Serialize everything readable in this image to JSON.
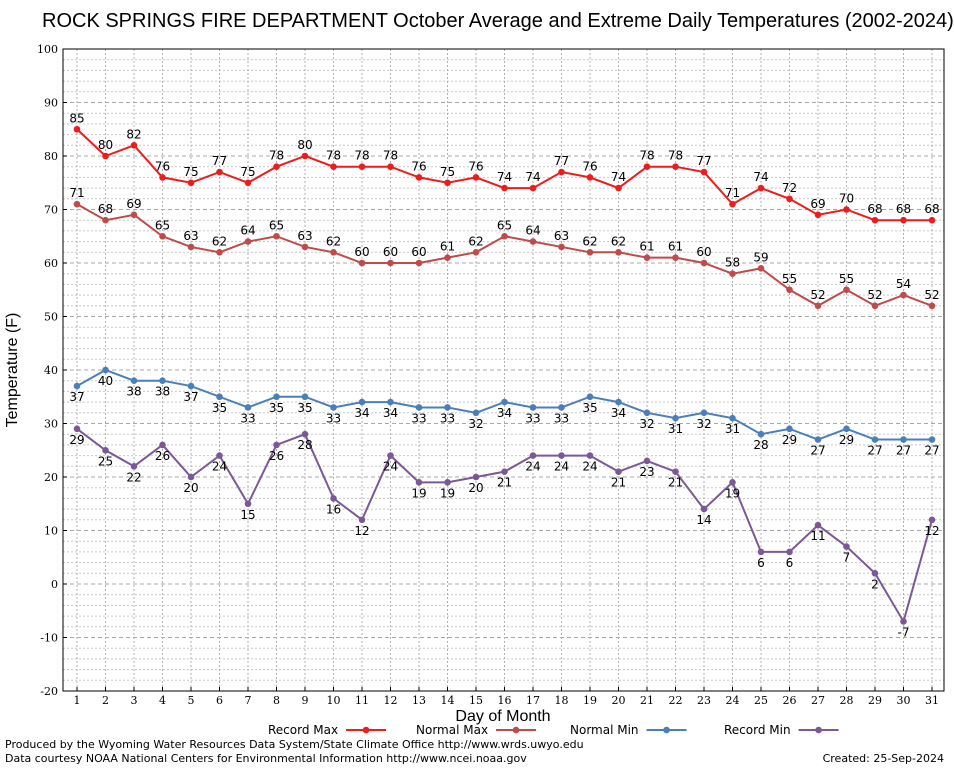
{
  "chart_data": {
    "type": "line",
    "title": "ROCK SPRINGS FIRE DEPARTMENT October Average and Extreme Daily Temperatures (2002-2024)",
    "xlabel": "Day of Month",
    "ylabel": "Temperature (F)",
    "ylim": [
      -20,
      100
    ],
    "yticks": [
      "-20",
      "-10",
      "0",
      "10",
      "20",
      "30",
      "40",
      "50",
      "60",
      "70",
      "80",
      "90",
      "100"
    ],
    "x": [
      1,
      2,
      3,
      4,
      5,
      6,
      7,
      8,
      9,
      10,
      11,
      12,
      13,
      14,
      15,
      16,
      17,
      18,
      19,
      20,
      21,
      22,
      23,
      24,
      25,
      26,
      27,
      28,
      29,
      30,
      31
    ],
    "grid": true,
    "legend_position": "bottom",
    "series": [
      {
        "name": "Record Max",
        "color": "#ee1c1c",
        "label_position": "above",
        "values": [
          85,
          80,
          82,
          76,
          75,
          77,
          75,
          78,
          80,
          78,
          78,
          78,
          76,
          75,
          76,
          74,
          74,
          77,
          76,
          74,
          78,
          78,
          77,
          71,
          74,
          72,
          69,
          70,
          68,
          68,
          68
        ]
      },
      {
        "name": "Normal Max",
        "color": "#bf4b4b",
        "label_position": "above",
        "values": [
          71,
          68,
          69,
          65,
          63,
          62,
          64,
          65,
          63,
          62,
          60,
          60,
          60,
          61,
          62,
          65,
          64,
          63,
          62,
          62,
          61,
          61,
          60,
          58,
          59,
          55,
          52,
          55,
          52,
          54,
          52
        ]
      },
      {
        "name": "Normal Min",
        "color": "#4a7fbb",
        "label_position": "below",
        "values": [
          37,
          40,
          38,
          38,
          37,
          35,
          33,
          35,
          35,
          33,
          34,
          34,
          33,
          33,
          32,
          34,
          33,
          33,
          35,
          34,
          32,
          31,
          32,
          31,
          28,
          29,
          27,
          29,
          27,
          27,
          27
        ]
      },
      {
        "name": "Record Min",
        "color": "#7b5896",
        "label_position": "below",
        "values": [
          29,
          25,
          22,
          26,
          20,
          24,
          15,
          26,
          28,
          16,
          12,
          24,
          19,
          19,
          20,
          21,
          24,
          24,
          24,
          21,
          23,
          21,
          14,
          19,
          6,
          6,
          11,
          7,
          2,
          -7,
          12
        ]
      }
    ]
  },
  "footer": {
    "produced_by": "Produced by the Wyoming Water Resources Data System/State Climate Office http://www.wrds.uwyo.edu",
    "courtesy": "Data courtesy NOAA National Centers for Environmental Information http://www.ncei.noaa.gov",
    "created": "Created:  25-Sep-2024"
  }
}
